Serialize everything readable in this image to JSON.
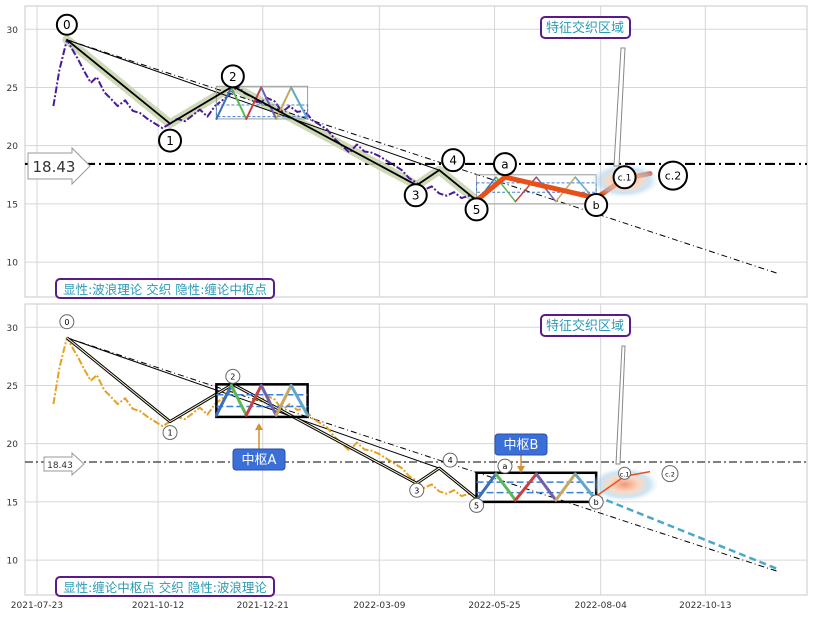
{
  "chart_data": [
    {
      "type": "line",
      "panel": "top",
      "ylim": [
        7,
        32
      ],
      "yticks": [
        10,
        15,
        20,
        25,
        30
      ],
      "xlim": [
        "2021-07-15",
        "2022-12-20"
      ],
      "grid": true,
      "legend_box_text": "显性:波浪理论 交织 隐性:缠论中枢点",
      "feature_label": "特征交织区域",
      "level_label": "18.43",
      "level_value": 18.43,
      "colors": {
        "price": "#4b1a9a",
        "wave": "#000000",
        "highlight": "#e8501a",
        "band": "#c9d5b0",
        "label_border": "#5a1a8a",
        "label_text": "#2a9ab8"
      },
      "price_series": {
        "name": "",
        "dates": [
          "2021-08-03",
          "2021-08-07",
          "2021-08-12",
          "2021-08-16",
          "2021-08-20",
          "2021-08-24",
          "2021-08-28",
          "2021-09-01",
          "2021-09-06",
          "2021-09-10",
          "2021-09-15",
          "2021-09-20",
          "2021-09-25",
          "2021-09-30",
          "2021-10-05",
          "2021-10-10",
          "2021-10-15",
          "2021-10-20",
          "2021-10-25",
          "2021-10-30",
          "2021-11-04",
          "2021-11-09",
          "2021-11-14",
          "2021-11-19",
          "2021-11-24",
          "2021-11-29",
          "2021-12-04",
          "2021-12-09",
          "2021-12-14",
          "2021-12-19",
          "2021-12-24",
          "2021-12-29",
          "2022-01-03",
          "2022-01-08",
          "2022-01-13",
          "2022-01-18",
          "2022-01-23",
          "2022-01-28",
          "2022-02-02",
          "2022-02-07",
          "2022-02-12",
          "2022-02-17",
          "2022-02-22",
          "2022-02-27",
          "2022-03-04",
          "2022-03-09",
          "2022-03-14",
          "2022-03-19",
          "2022-03-24",
          "2022-03-29",
          "2022-04-03",
          "2022-04-08",
          "2022-04-13",
          "2022-04-18",
          "2022-04-23",
          "2022-04-28",
          "2022-05-03",
          "2022-05-08",
          "2022-05-13"
        ],
        "values": [
          23.4,
          26.5,
          29.1,
          28.2,
          27.3,
          26.3,
          25.4,
          25.9,
          24.6,
          24.1,
          23.4,
          23.9,
          23.0,
          22.8,
          22.3,
          21.9,
          21.5,
          21.9,
          22.3,
          22.1,
          22.6,
          23.1,
          22.5,
          23.4,
          23.9,
          24.4,
          25.1,
          24.5,
          24.2,
          23.7,
          24.1,
          23.8,
          22.9,
          23.4,
          22.9,
          23.0,
          22.2,
          21.8,
          21.4,
          20.6,
          20.0,
          19.4,
          20.1,
          19.5,
          19.4,
          19.1,
          18.7,
          18.3,
          17.9,
          17.2,
          16.8,
          16.2,
          16.5,
          15.9,
          15.7,
          16.0,
          15.5,
          15.7,
          15.4
        ]
      },
      "wave_points": [
        {
          "label": "0",
          "date": "2021-08-12",
          "value": 29.1
        },
        {
          "label": "1",
          "date": "2021-10-20",
          "value": 21.9
        },
        {
          "label": "2",
          "date": "2021-12-01",
          "value": 25.1
        },
        {
          "label": "3",
          "date": "2022-04-03",
          "value": 16.6
        },
        {
          "label": "4",
          "date": "2022-04-18",
          "value": 17.9
        },
        {
          "label": "5",
          "date": "2022-05-13",
          "value": 15.3
        },
        {
          "label": "a",
          "date": "2022-06-01",
          "value": 17.3
        },
        {
          "label": "b",
          "date": "2022-08-01",
          "value": 15.5
        },
        {
          "label": "c.1",
          "date": "2022-08-20",
          "value": 17.2
        },
        {
          "label": "c.2",
          "date": "2022-09-06",
          "value": 17.6
        }
      ]
    },
    {
      "type": "line",
      "panel": "bottom",
      "ylim": [
        7,
        32
      ],
      "yticks": [
        10,
        15,
        20,
        25,
        30
      ],
      "xlim": [
        "2021-07-15",
        "2022-12-20"
      ],
      "xticks": [
        "2021-07-23",
        "2021-10-12",
        "2021-12-21",
        "2022-03-09",
        "2022-05-25",
        "2022-08-04",
        "2022-10-13"
      ],
      "grid": true,
      "legend_box_text": "显性:缠论中枢点 交织 隐性:波浪理论",
      "feature_label": "特征交织区域",
      "level_label": "18.43",
      "level_value": 18.43,
      "pivot_labels": [
        "中枢A",
        "中枢B"
      ],
      "colors": {
        "price": "#e8a020",
        "wave": "#000000",
        "pivot_box": "#000000",
        "callout": "#3a6fd8",
        "label_border": "#5a1a8a",
        "label_text": "#2a9ab8"
      },
      "pivots": [
        {
          "label": "中枢A",
          "start": "2021-11-20",
          "end": "2022-01-20",
          "low": 22.3,
          "high": 25.1
        },
        {
          "label": "中枢B",
          "start": "2022-05-13",
          "end": "2022-08-01",
          "low": 15.0,
          "high": 17.5
        }
      ]
    }
  ]
}
